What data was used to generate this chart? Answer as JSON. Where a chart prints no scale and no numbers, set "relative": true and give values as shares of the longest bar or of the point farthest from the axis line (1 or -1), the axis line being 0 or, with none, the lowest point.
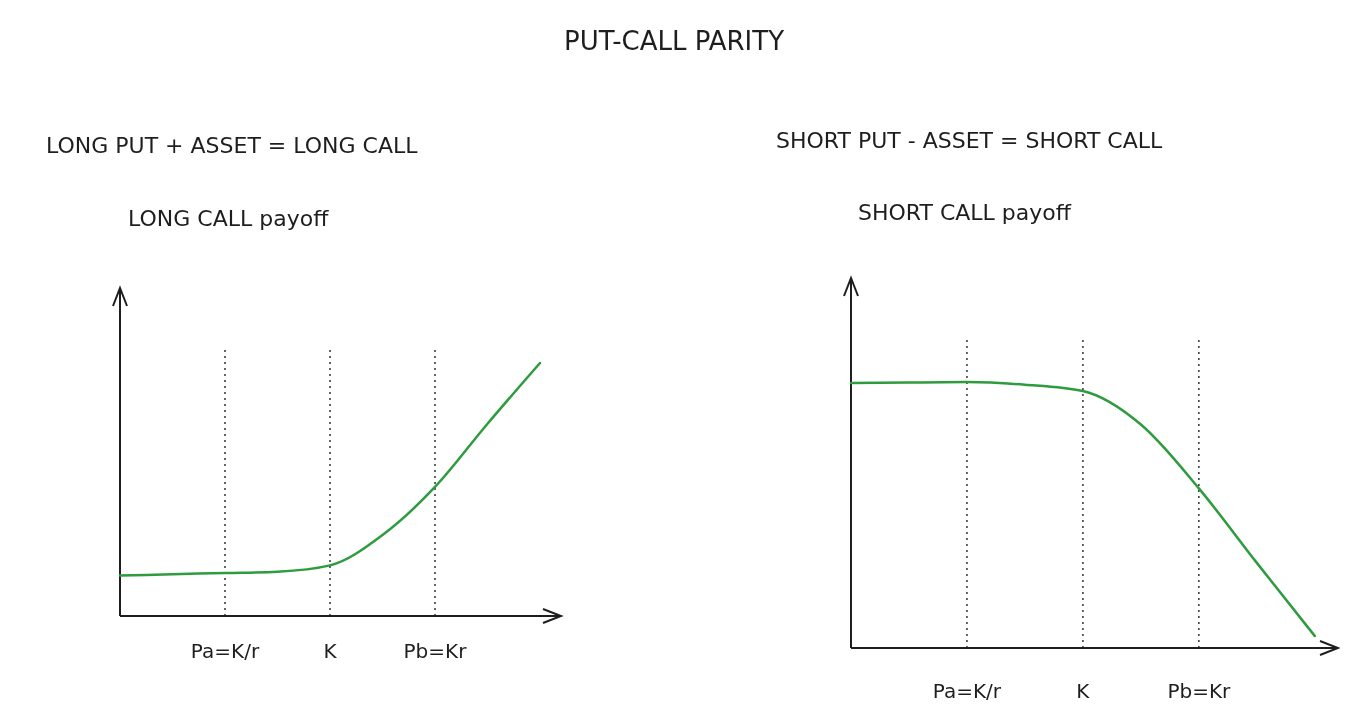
{
  "chart_data": [
    {
      "type": "line",
      "title": "LONG PUT + ASSET = LONG CALL",
      "subtitle": "LONG CALL payoff",
      "annotations": [
        "PUT-CALL PARITY"
      ],
      "relative": true,
      "grid": "x",
      "line_style": "solid",
      "categories": [
        null,
        null,
        "Pa=K/r",
        null,
        "K",
        null,
        "Pb=Kr",
        null,
        null
      ],
      "series": [
        {
          "color": "#2e9b3e",
          "values": [
            0.16,
            0.165,
            0.17,
            0.175,
            0.2,
            0.32,
            0.51,
            0.76,
            1.0
          ]
        }
      ]
    },
    {
      "type": "line",
      "title": "SHORT PUT - ASSET = SHORT CALL",
      "subtitle": "SHORT CALL payoff",
      "relative": true,
      "grid": "x",
      "line_style": "solid",
      "categories": [
        null,
        null,
        "Pa=K/r",
        null,
        "K",
        null,
        "Pb=Kr",
        null,
        null
      ],
      "series": [
        {
          "color": "#2e9b3e",
          "values": [
            0.996,
            0.998,
            1.0,
            0.99,
            0.966,
            0.84,
            0.6,
            0.32,
            0.045
          ]
        }
      ]
    }
  ]
}
